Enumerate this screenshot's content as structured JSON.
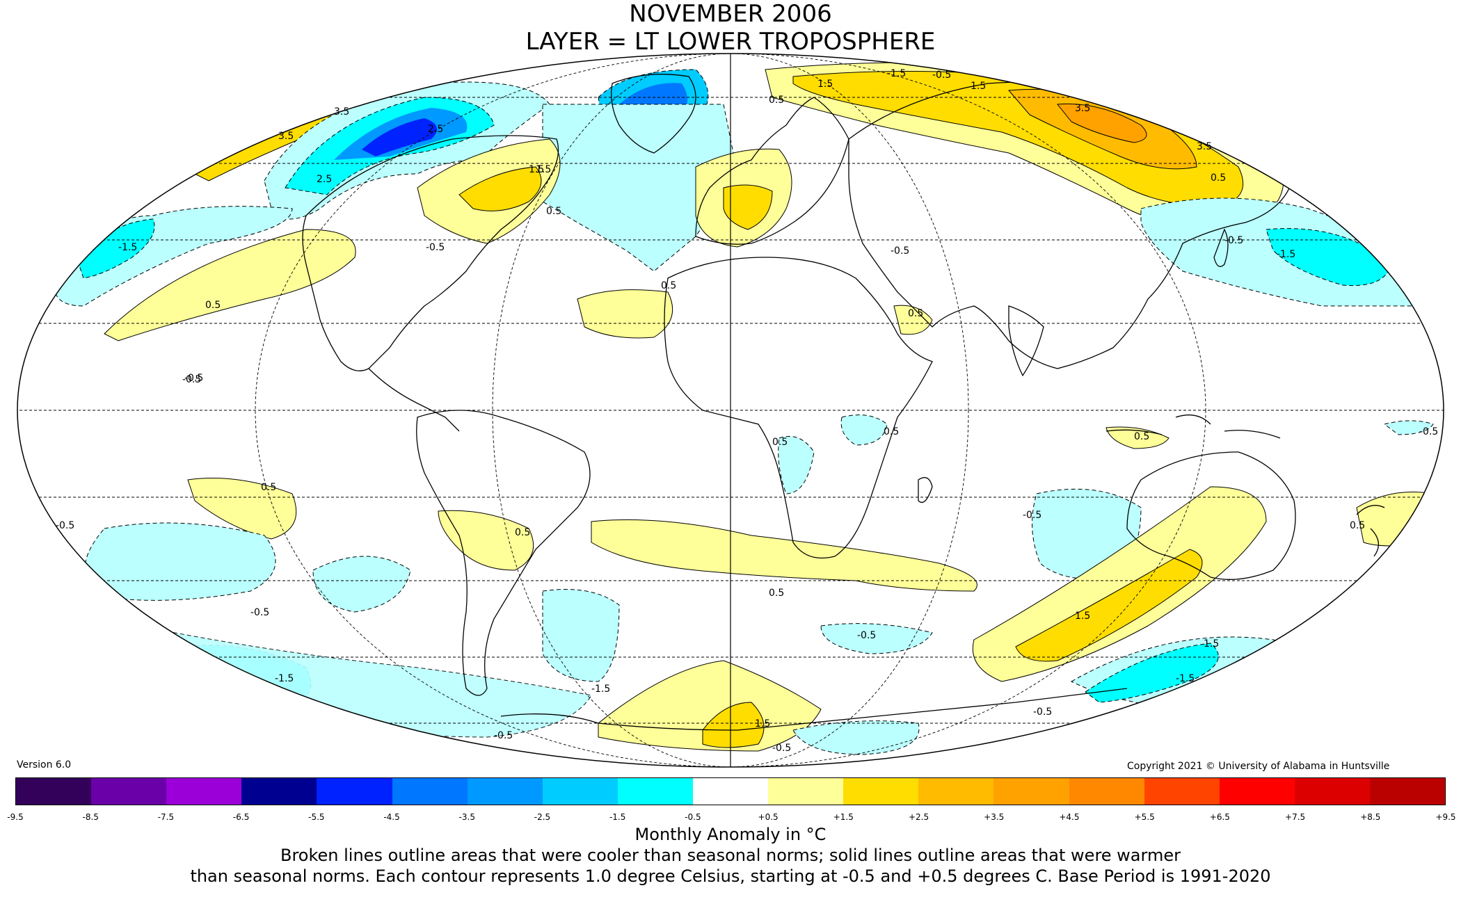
{
  "title_line1": "NOVEMBER 2006",
  "title_line2": "LAYER = LT LOWER TROPOSPHERE",
  "version": "Version 6.0",
  "copyright": "Copyright 2021 © University of Alabama in Huntsville",
  "colorbar": {
    "ticks": [
      "-9.5",
      "-8.5",
      "-7.5",
      "-6.5",
      "-5.5",
      "-4.5",
      "-3.5",
      "-2.5",
      "-1.5",
      "-0.5",
      "+0.5",
      "+1.5",
      "+2.5",
      "+3.5",
      "+4.5",
      "+5.5",
      "+6.5",
      "+7.5",
      "+8.5",
      "+9.5"
    ],
    "colors": [
      "#33005a",
      "#6a00a8",
      "#9b00d8",
      "#b800ff",
      "#000090",
      "#0022ff",
      "#0077ff",
      "#0099ff",
      "#00ccff",
      "#00ffff",
      "#bbffff",
      "#ffffff",
      "#ffff99",
      "#ffdd00",
      "#ffbb00",
      "#ffa200",
      "#ff8800",
      "#ff6a00",
      "#ff4400",
      "#ff0000",
      "#dd0000",
      "#bb0000"
    ]
  },
  "units_label": "Monthly Anomaly in °C",
  "note_line1": "Broken lines outline areas that were cooler than seasonal norms; solid lines outline areas that were warmer",
  "note_line2": "than seasonal norms. Each contour represents 1.0 degree Celsius, starting at -0.5 and +0.5 degrees C. Base Period is 1991-2020",
  "contour_labels": [
    "3.5",
    "2.5",
    "3.5",
    "2.5",
    "1.5",
    "0.5",
    "-0.5",
    "1.5",
    "-1.5",
    "0.5",
    "-0.5",
    "1.5",
    "0.5",
    "-1.5",
    "3.5",
    "3.5",
    "-0.5",
    "-1.5",
    "0.5",
    "1.5",
    "0.5",
    "-0.5",
    "0.5",
    "-0.5",
    "0.5",
    "-0.5",
    "-0.5",
    "0.5",
    "-0.5",
    "1.5",
    "0.5",
    "-1.5",
    "1.5",
    "-1.5",
    "-1.5",
    "-0.5",
    "-0.5",
    "-0.5",
    "-0.5",
    "1.5",
    "0.5",
    "-0.5",
    "0.5",
    "0.5",
    "0.5",
    "-0.5"
  ]
}
